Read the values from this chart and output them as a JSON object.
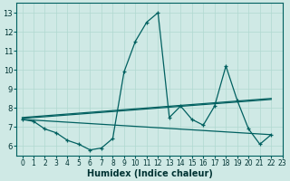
{
  "xlabel": "Humidex (Indice chaleur)",
  "bg_color": "#cfe9e5",
  "grid_color": "#b0d8d0",
  "line_color": "#006060",
  "xlim": [
    -0.5,
    23
  ],
  "ylim": [
    5.5,
    13.5
  ],
  "xticks": [
    0,
    1,
    2,
    3,
    4,
    5,
    6,
    7,
    8,
    9,
    10,
    11,
    12,
    13,
    14,
    15,
    16,
    17,
    18,
    19,
    20,
    21,
    22,
    23
  ],
  "yticks": [
    6,
    7,
    8,
    9,
    10,
    11,
    12,
    13
  ],
  "main_y": [
    7.4,
    7.3,
    6.9,
    6.7,
    6.3,
    6.1,
    5.8,
    5.9,
    6.4,
    9.9,
    11.5,
    12.5,
    13.0,
    7.5,
    8.1,
    7.4,
    7.1,
    8.1,
    10.2,
    8.4,
    6.9,
    6.1,
    6.6
  ],
  "trend1_x": [
    0,
    22
  ],
  "trend1_y": [
    7.45,
    8.45
  ],
  "trend2_x": [
    0,
    22
  ],
  "trend2_y": [
    7.5,
    8.5
  ],
  "trend3_x": [
    0,
    22
  ],
  "trend3_y": [
    7.4,
    6.6
  ]
}
